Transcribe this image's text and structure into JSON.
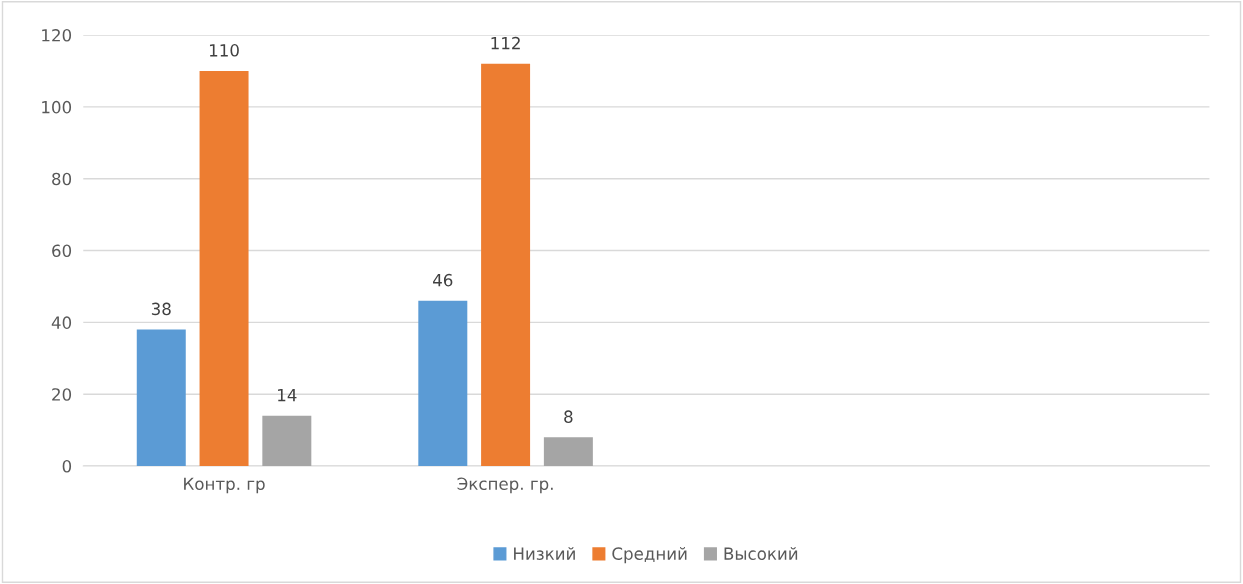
{
  "chart_data": {
    "type": "bar",
    "categories": [
      "Контр. гр",
      "Экспер. гр.",
      null,
      null
    ],
    "series": [
      {
        "name": "Низкий",
        "color": "#5b9bd5",
        "values": [
          38,
          46,
          null,
          null
        ]
      },
      {
        "name": "Средний",
        "color": "#ed7d31",
        "values": [
          110,
          112,
          null,
          null
        ]
      },
      {
        "name": "Высокий",
        "color": "#a5a5a5",
        "values": [
          14,
          8,
          null,
          null
        ]
      }
    ],
    "ylim": [
      0,
      120
    ],
    "yticks": [
      0,
      20,
      40,
      60,
      80,
      100,
      120
    ],
    "grid": "y",
    "legend": "bottom",
    "data_labels": true
  }
}
